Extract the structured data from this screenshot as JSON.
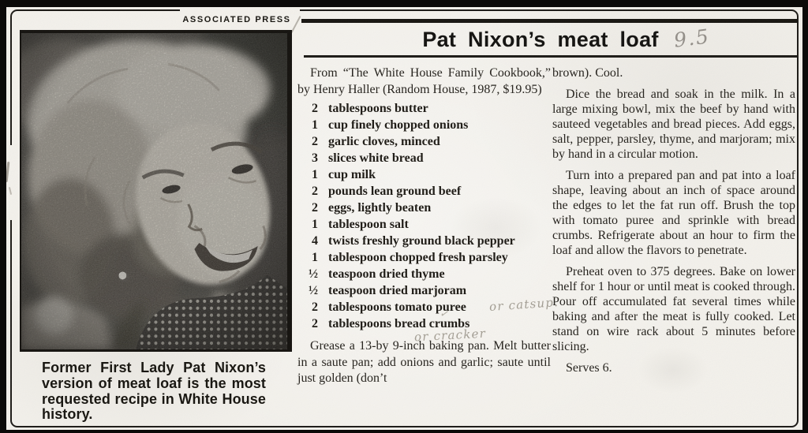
{
  "clipping": {
    "credit": "ASSOCIATED PRESS",
    "headline": "Pat Nixon’s meat loaf",
    "handwritten": {
      "rating": "9.5"
    },
    "photo_caption": "Former First Lady Pat Nixon’s version of meat loaf is the most requested recipe in White House history.",
    "recipe": {
      "source_line": "From “The White House Family Cookbook,” by Henry Haller (Ran­dom House, 1987, $19.95)",
      "ingredients": [
        {
          "qty": "2",
          "item": "tablespoons butter"
        },
        {
          "qty": "1",
          "item": "cup finely chopped onions"
        },
        {
          "qty": "2",
          "item": "garlic cloves, minced"
        },
        {
          "qty": "3",
          "item": "slices white bread"
        },
        {
          "qty": "1",
          "item": "cup milk"
        },
        {
          "qty": "2",
          "item": "pounds lean ground beef"
        },
        {
          "qty": "2",
          "item": "eggs, lightly beaten"
        },
        {
          "qty": "1",
          "item": "tablespoon salt"
        },
        {
          "qty": "4",
          "item": "twists freshly ground black pep­per"
        },
        {
          "qty": "1",
          "item": "tablespoon chopped fresh parsley"
        },
        {
          "qty": "½",
          "item": "teaspoon dried thyme"
        },
        {
          "qty": "½",
          "item": "teaspoon dried marjoram"
        },
        {
          "qty": "2",
          "item": "tablespoons tomato puree",
          "annotation": "or catsup.",
          "annotation_position": "right"
        },
        {
          "qty": "2",
          "item": "tablespoons bread crumbs",
          "annotation": "or cracker",
          "annotation_position": "below",
          "check_mark": "✓"
        }
      ],
      "instructions_column1": "Grease a 13-by 9-inch baking pan. Melt butter in a saute pan; add onions and garlic; saute until just golden (don’t",
      "instructions_column2": [
        "brown). Cool.",
        "Dice the bread and soak in the milk. In a large mixing bowl, mix the beef by hand with sauteed vegetables and bread pieces. Add eggs, salt, pepper, parsley, thyme, and marjoram; mix by hand in a circular motion.",
        "Turn into a prepared pan and pat into a loaf shape, leaving about an inch of space around the edges to let the fat run off. Brush the top with tomato puree and sprinkle with bread crumbs. Refrigerate about an hour to firm the loaf and allow the flavors to penetrate.",
        "Preheat oven to 375 degrees. Bake on lower shelf for 1 hour or until meat is cooked through. Pour off accumulat­ed fat several times while baking and after the meat is fully cooked. Let stand on wire rack about 5 minutes before slicing."
      ],
      "serves": "Serves 6."
    }
  }
}
